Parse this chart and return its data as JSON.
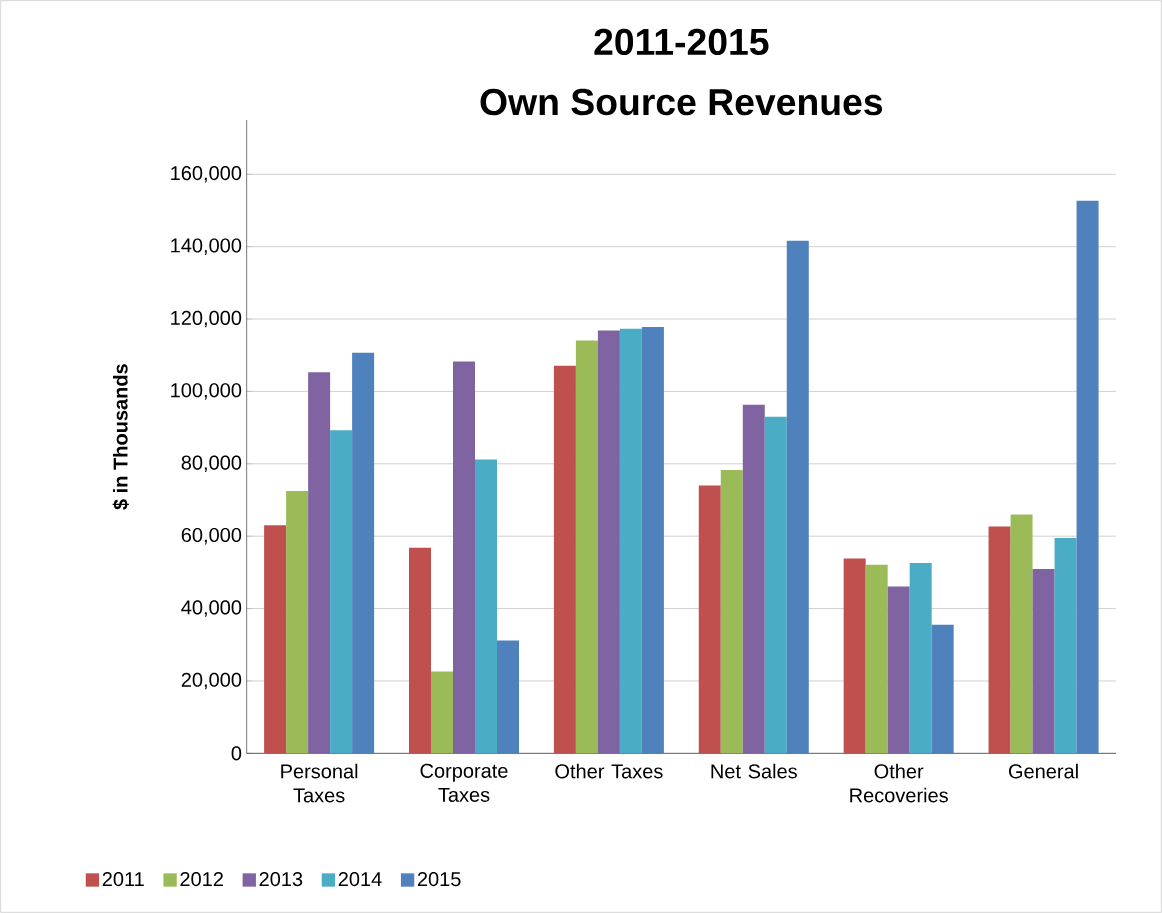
{
  "chart_data": {
    "type": "bar",
    "title": "2011-2015",
    "subtitle": "Own Source Revenues",
    "ylabel": "$ in Thousands",
    "categories": [
      "Personal Taxes",
      "Corporate Taxes",
      "Other Taxes",
      "Net Sales",
      "Other Recoveries",
      "General"
    ],
    "series": [
      {
        "name": "2011",
        "color": "#c0504d",
        "values": [
          63000,
          56800,
          107100,
          74000,
          53800,
          62700
        ]
      },
      {
        "name": "2012",
        "color": "#9bbb59",
        "values": [
          72500,
          22600,
          114100,
          78300,
          52100,
          66000
        ]
      },
      {
        "name": "2013",
        "color": "#8064a2",
        "values": [
          105300,
          108300,
          116800,
          96300,
          46100,
          50900
        ]
      },
      {
        "name": "2014",
        "color": "#4bacc6",
        "values": [
          89300,
          81200,
          117300,
          93000,
          52600,
          59500
        ]
      },
      {
        "name": "2015",
        "color": "#4f81bd",
        "values": [
          110700,
          31200,
          117800,
          141600,
          35500,
          152700
        ]
      }
    ],
    "ylim": [
      0,
      175000
    ],
    "yticks": [
      0,
      {
        "value": 20000,
        "label": "20,000"
      },
      {
        "value": 40000,
        "label": "40,000"
      },
      {
        "value": 60000,
        "label": "60,000"
      },
      {
        "value": 80000,
        "label": "80,000"
      },
      {
        "value": 100000,
        "label": "100,000"
      },
      {
        "value": 120000,
        "label": "120,000"
      },
      {
        "value": 140000,
        "label": "140,000"
      },
      {
        "value": 160000,
        "label": "160,000"
      }
    ],
    "grid": "y",
    "legend": "bottom left"
  }
}
